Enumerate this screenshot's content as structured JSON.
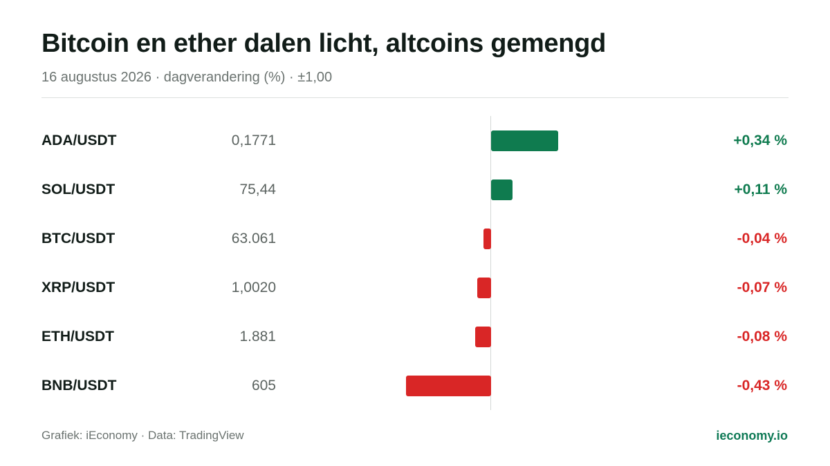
{
  "title": "Bitcoin en ether dalen licht, altcoins gemengd",
  "subtitle": "16 augustus 2026 · dagverandering (%) · ±1,00",
  "footer": {
    "credit": "Grafiek: iEconomy · Data: TradingView",
    "site": "ieconomy.io"
  },
  "colors": {
    "positive": "#0f7b4f",
    "negative": "#d92626"
  },
  "chart_data": {
    "type": "bar",
    "orientation": "horizontal",
    "categories": [
      "ADA/USDT",
      "SOL/USDT",
      "BTC/USDT",
      "XRP/USDT",
      "ETH/USDT",
      "BNB/USDT"
    ],
    "prices": [
      "0,1771",
      "75,44",
      "63.061",
      "1,0020",
      "1.881",
      "605"
    ],
    "values": [
      0.34,
      0.11,
      -0.04,
      -0.07,
      -0.08,
      -0.43
    ],
    "value_labels": [
      "+0,34 %",
      "+0,11 %",
      "-0,04 %",
      "-0,07 %",
      "-0,08 %",
      "-0,43 %"
    ],
    "xlim": [
      -1.0,
      1.0
    ],
    "grid": false,
    "legend": "none"
  }
}
